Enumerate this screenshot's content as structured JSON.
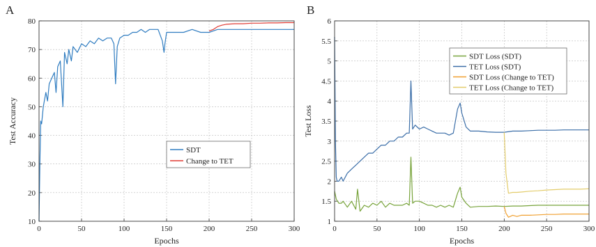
{
  "chart_data": [
    {
      "type": "line",
      "panel_label": "A",
      "xlabel": "Epochs",
      "ylabel": "Test Accuracy",
      "xlim": [
        0,
        300
      ],
      "ylim": [
        10,
        80
      ],
      "xticks": [
        "0",
        "50",
        "100",
        "150",
        "200",
        "250",
        "300"
      ],
      "yticks": [
        "10",
        "20",
        "30",
        "40",
        "50",
        "60",
        "70",
        "80"
      ],
      "grid": true,
      "legend_position": "center-right",
      "colors": {
        "SDT": "#2f7cc0",
        "Change to TET": "#e03a32"
      },
      "series": [
        {
          "name": "SDT",
          "x": [
            0,
            1,
            2,
            3,
            5,
            8,
            10,
            12,
            15,
            18,
            20,
            22,
            25,
            28,
            30,
            33,
            35,
            38,
            40,
            45,
            50,
            55,
            60,
            65,
            70,
            75,
            80,
            85,
            88,
            90,
            92,
            95,
            100,
            105,
            110,
            115,
            120,
            125,
            130,
            135,
            140,
            145,
            147,
            148,
            150,
            155,
            160,
            170,
            180,
            190,
            200,
            210,
            220,
            230,
            240,
            250,
            260,
            270,
            280,
            290,
            300
          ],
          "values": [
            10,
            30,
            45,
            44,
            50,
            55,
            52,
            58,
            60,
            62,
            55,
            64,
            66,
            50,
            69,
            65,
            70,
            66,
            71,
            69,
            72,
            71,
            73,
            72,
            74,
            73,
            74,
            74,
            72,
            58,
            71,
            74,
            75,
            75,
            76,
            76,
            77,
            76,
            77,
            77,
            77,
            73,
            69,
            72,
            76,
            76,
            76,
            76,
            77,
            76,
            76,
            77,
            77,
            77,
            77,
            77,
            77,
            77,
            77,
            77,
            77
          ]
        },
        {
          "name": "Change to TET",
          "x": [
            200,
            205,
            210,
            215,
            220,
            230,
            240,
            250,
            260,
            270,
            280,
            290,
            300
          ],
          "values": [
            76.5,
            77,
            78,
            78.5,
            78.8,
            79,
            79,
            79.2,
            79.2,
            79.3,
            79.3,
            79.4,
            79.4
          ]
        }
      ]
    },
    {
      "type": "line",
      "panel_label": "B",
      "xlabel": "Epochs",
      "ylabel": "Test Loss",
      "xlim": [
        0,
        300
      ],
      "ylim": [
        1,
        6
      ],
      "xticks": [
        "0",
        "50",
        "100",
        "150",
        "200",
        "250",
        "300"
      ],
      "yticks": [
        "1",
        "1.5",
        "2",
        "2.5",
        "3",
        "3.5",
        "4",
        "4.5",
        "5",
        "5.5",
        "6"
      ],
      "grid": true,
      "legend_position": "top-right",
      "colors": {
        "SDT Loss (SDT)": "#77a33a",
        "TET Loss (SDT)": "#3b6ea8",
        "SDT Loss (Change to TET)": "#f0a030",
        "TET Loss (Change to TET)": "#e3cc6a"
      },
      "series": [
        {
          "name": "SDT Loss (SDT)",
          "x": [
            0,
            2,
            5,
            8,
            10,
            15,
            20,
            25,
            27,
            30,
            35,
            40,
            45,
            50,
            55,
            60,
            65,
            70,
            75,
            80,
            85,
            88,
            90,
            92,
            95,
            100,
            105,
            110,
            115,
            120,
            125,
            130,
            135,
            140,
            145,
            148,
            150,
            155,
            160,
            170,
            180,
            190,
            200,
            210,
            220,
            230,
            240,
            250,
            260,
            270,
            280,
            290,
            300
          ],
          "values": [
            1.75,
            1.55,
            1.45,
            1.45,
            1.5,
            1.35,
            1.5,
            1.3,
            1.8,
            1.25,
            1.4,
            1.35,
            1.45,
            1.4,
            1.5,
            1.35,
            1.45,
            1.4,
            1.4,
            1.4,
            1.45,
            1.4,
            2.6,
            1.45,
            1.5,
            1.5,
            1.45,
            1.4,
            1.4,
            1.35,
            1.4,
            1.35,
            1.4,
            1.35,
            1.7,
            1.85,
            1.6,
            1.45,
            1.35,
            1.37,
            1.37,
            1.38,
            1.37,
            1.38,
            1.38,
            1.39,
            1.4,
            1.4,
            1.4,
            1.4,
            1.4,
            1.4,
            1.4
          ]
        },
        {
          "name": "TET Loss (SDT)",
          "x": [
            0,
            1,
            2,
            3,
            5,
            8,
            10,
            15,
            20,
            25,
            30,
            35,
            40,
            45,
            50,
            55,
            60,
            65,
            70,
            75,
            80,
            85,
            88,
            90,
            92,
            95,
            100,
            105,
            110,
            115,
            120,
            125,
            130,
            135,
            140,
            145,
            148,
            150,
            155,
            160,
            170,
            180,
            190,
            200,
            210,
            220,
            230,
            240,
            250,
            260,
            270,
            280,
            290,
            300
          ],
          "values": [
            5.6,
            3.0,
            2.1,
            2.0,
            2.0,
            2.1,
            2.0,
            2.2,
            2.3,
            2.4,
            2.5,
            2.6,
            2.7,
            2.7,
            2.8,
            2.9,
            2.9,
            3.0,
            3.0,
            3.1,
            3.1,
            3.2,
            3.2,
            4.5,
            3.3,
            3.4,
            3.3,
            3.35,
            3.3,
            3.25,
            3.2,
            3.2,
            3.2,
            3.15,
            3.2,
            3.8,
            3.95,
            3.7,
            3.35,
            3.25,
            3.25,
            3.23,
            3.22,
            3.22,
            3.25,
            3.25,
            3.26,
            3.27,
            3.27,
            3.27,
            3.28,
            3.28,
            3.28,
            3.28
          ]
        },
        {
          "name": "SDT Loss (Change to TET)",
          "x": [
            200,
            202,
            205,
            210,
            215,
            220,
            230,
            240,
            250,
            260,
            270,
            280,
            290,
            300
          ],
          "values": [
            1.37,
            1.2,
            1.1,
            1.15,
            1.12,
            1.15,
            1.15,
            1.16,
            1.17,
            1.17,
            1.18,
            1.18,
            1.18,
            1.18
          ]
        },
        {
          "name": "TET Loss (Change to TET)",
          "x": [
            200,
            202,
            205,
            210,
            215,
            220,
            230,
            240,
            250,
            260,
            270,
            280,
            290,
            300
          ],
          "values": [
            3.22,
            2.2,
            1.7,
            1.72,
            1.72,
            1.73,
            1.75,
            1.76,
            1.78,
            1.79,
            1.8,
            1.8,
            1.8,
            1.81
          ]
        }
      ]
    }
  ]
}
